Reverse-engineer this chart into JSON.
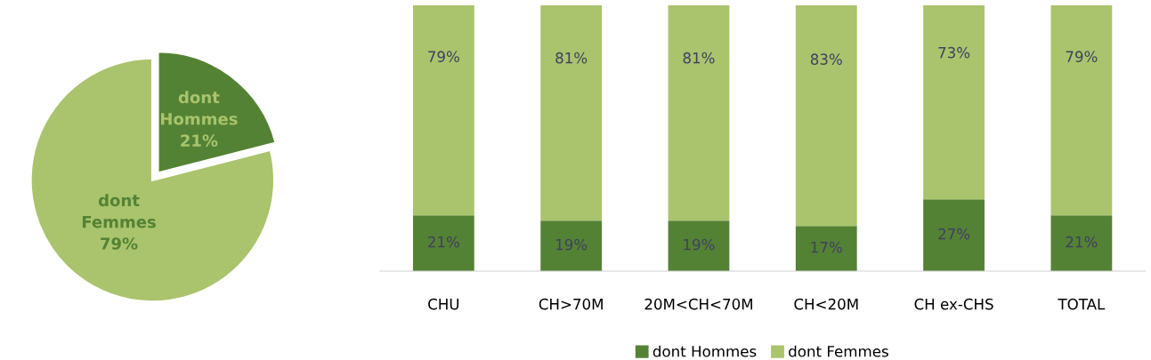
{
  "chart_data": [
    {
      "type": "pie",
      "categories": [
        "dont\nHommes",
        "dont\nFemmes"
      ],
      "values": [
        21,
        79
      ],
      "colors": [
        "#548235",
        "#a9c46c"
      ],
      "value_labels": [
        "21%",
        "79%"
      ]
    },
    {
      "type": "bar",
      "stacked": true,
      "categories": [
        "CHU",
        "CH>70M",
        "20M<CH<70M",
        "CH<20M",
        "CH ex-CHS",
        "TOTAL"
      ],
      "legend": "bottom",
      "series": [
        {
          "name": "dont Hommes",
          "color": "#548235",
          "values": [
            21,
            19,
            19,
            17,
            27,
            21
          ],
          "value_labels": [
            "21%",
            "19%",
            "19%",
            "17%",
            "27%",
            "21%"
          ]
        },
        {
          "name": "dont Femmes",
          "color": "#a9c46c",
          "values": [
            79,
            81,
            81,
            83,
            73,
            79
          ],
          "value_labels": [
            "79%",
            "81%",
            "81%",
            "83%",
            "73%",
            "79%"
          ]
        }
      ]
    }
  ]
}
